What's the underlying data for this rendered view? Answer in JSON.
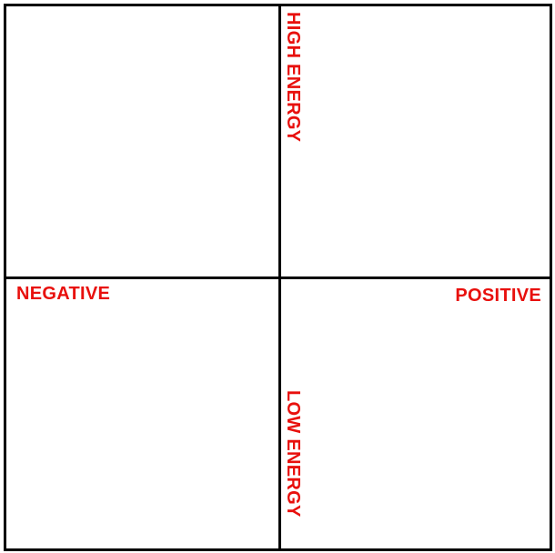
{
  "colors": {
    "label": "#e8100d",
    "axis": "#000000",
    "background": "#ffffff"
  },
  "labels": {
    "high_energy": "HIGH ENERGY",
    "low_energy": "LOW ENERGY",
    "negative": "NEGATIVE",
    "positive": "POSITIVE"
  }
}
